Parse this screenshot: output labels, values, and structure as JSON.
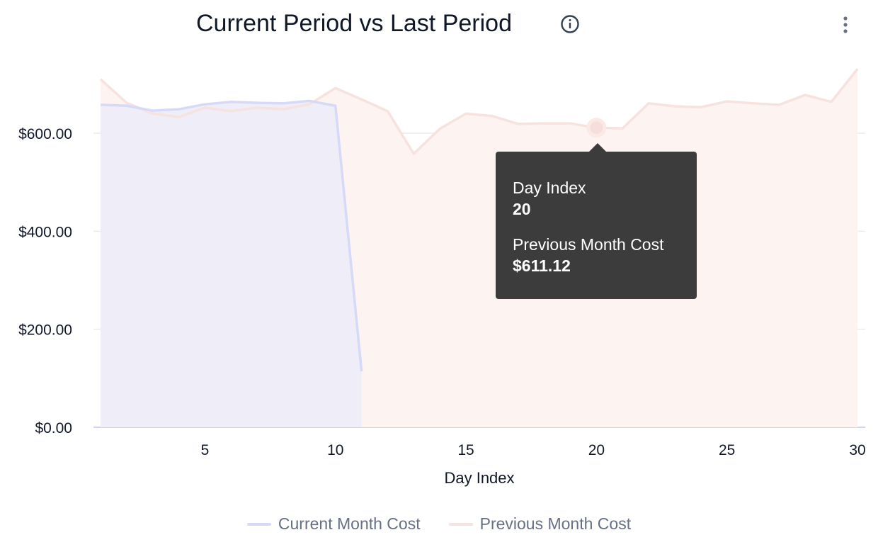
{
  "header": {
    "title": "Current Period vs Last Period",
    "info_icon": "info-circle-icon",
    "menu_icon": "kebab-menu-icon"
  },
  "chart_data": {
    "type": "area",
    "title": "Current Period vs Last Period",
    "xlabel": "Day Index",
    "ylabel": "",
    "xlim": [
      1,
      30
    ],
    "ylim": [
      0,
      750
    ],
    "x_ticks": [
      5,
      10,
      15,
      20,
      25,
      30
    ],
    "y_ticks": [
      0,
      200,
      400,
      600
    ],
    "y_tick_labels": [
      "$0.00",
      "$200.00",
      "$400.00",
      "$600.00"
    ],
    "grid": true,
    "legend_position": "bottom",
    "series": [
      {
        "name": "Current Month Cost",
        "color": "#d6daf7",
        "fill": "#eeedf8",
        "x": [
          1,
          2,
          3,
          4,
          5,
          6,
          7,
          8,
          9,
          10,
          11
        ],
        "values": [
          658,
          656,
          646,
          649,
          659,
          664,
          662,
          661,
          666,
          656,
          114
        ]
      },
      {
        "name": "Previous Month Cost",
        "color": "#f6e2de",
        "fill": "#fdf3f1",
        "x": [
          1,
          2,
          3,
          4,
          5,
          6,
          7,
          8,
          9,
          10,
          11,
          12,
          13,
          14,
          15,
          16,
          17,
          18,
          19,
          20,
          21,
          22,
          23,
          24,
          25,
          26,
          27,
          28,
          29,
          30
        ],
        "values": [
          710,
          662,
          640,
          633,
          652,
          645,
          652,
          649,
          659,
          692,
          669,
          645,
          558,
          609,
          640,
          635,
          619,
          620,
          620,
          611.12,
          610,
          661,
          655,
          653,
          665,
          661,
          658,
          678,
          664,
          731
        ]
      }
    ],
    "tooltip": {
      "x_label": "Day Index",
      "x_value": "20",
      "series_label": "Previous Month Cost",
      "series_value": "$611.12"
    }
  }
}
